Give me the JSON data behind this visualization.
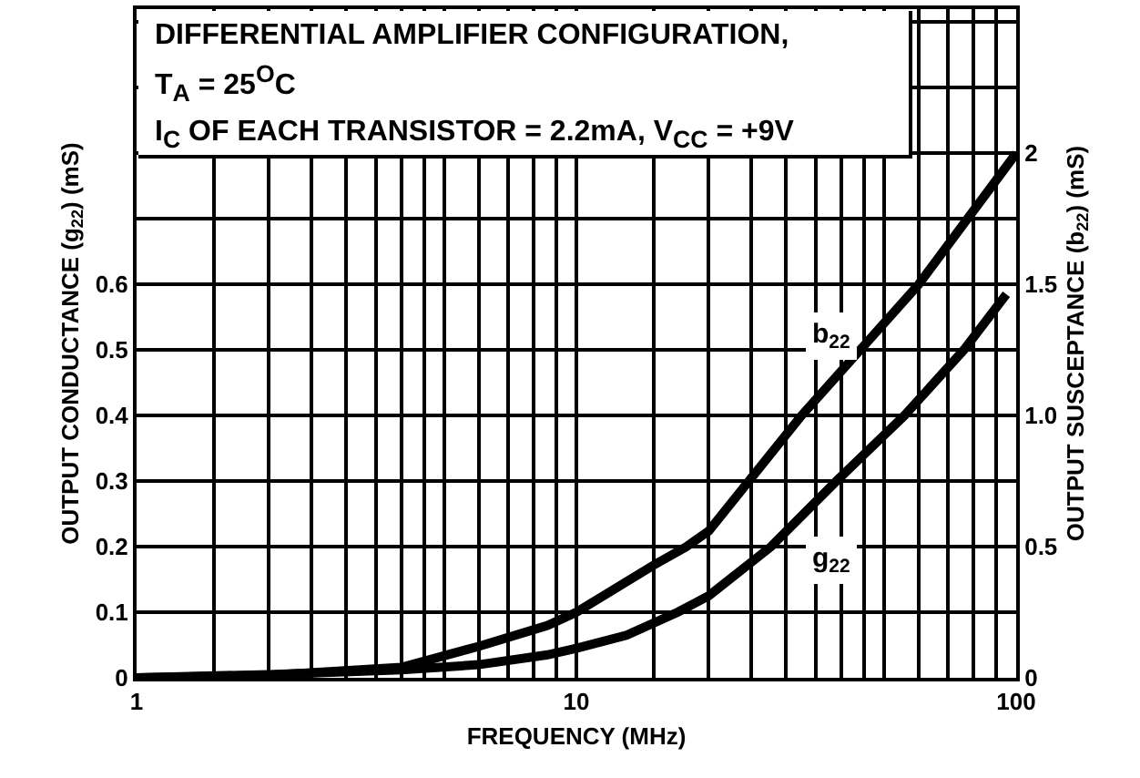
{
  "chart_data": {
    "type": "line",
    "title": "DIFFERENTIAL AMPLIFIER CONFIGURATION,\nT$_{A}$ = 25$^{O}$C\nI$_{C}$ OF EACH TRANSISTOR = 2.2mA, V$_{CC}$ = +9V",
    "xlabel": "FREQUENCY (MHz)",
    "ylabel": "OUTPUT CONDUCTANCE (g$_{22}$) (mS)",
    "y2label": "OUTPUT SUSCEPTANCE (b$_{22}$) (mS)",
    "log": "x",
    "grid": true,
    "marker": "none",
    "line_style": "solid",
    "xlim": [
      1,
      100
    ],
    "xticks": [
      1,
      {
        "value": 1.5,
        "label": null
      },
      {
        "value": 2,
        "label": null
      },
      {
        "value": 2.5,
        "label": null
      },
      {
        "value": 3,
        "label": null
      },
      {
        "value": 3.5,
        "label": null
      },
      {
        "value": 4,
        "label": null
      },
      {
        "value": 4.5,
        "label": null
      },
      {
        "value": 5,
        "label": null
      },
      {
        "value": 6,
        "label": null
      },
      {
        "value": 7,
        "label": null
      },
      {
        "value": 8,
        "label": null
      },
      {
        "value": 9,
        "label": null
      },
      10,
      {
        "value": 15,
        "label": null
      },
      {
        "value": 20,
        "label": null
      },
      {
        "value": 25,
        "label": null
      },
      {
        "value": 30,
        "label": null
      },
      {
        "value": 35,
        "label": null
      },
      {
        "value": 40,
        "label": null
      },
      {
        "value": 45,
        "label": null
      },
      {
        "value": 50,
        "label": null
      },
      {
        "value": 60,
        "label": null
      },
      {
        "value": 70,
        "label": null
      },
      {
        "value": 80,
        "label": null
      },
      {
        "value": 90,
        "label": null
      },
      100
    ],
    "ylim": [
      0,
      1.02
    ],
    "yticks": [
      0,
      0.1,
      0.2,
      0.3,
      0.4,
      0.5,
      0.6,
      {
        "value": 0.7,
        "label": null
      },
      {
        "value": 0.8,
        "label": null
      },
      {
        "value": 0.9,
        "label": null
      },
      {
        "value": 1.0,
        "label": null
      }
    ],
    "y2lim": [
      0,
      2.55
    ],
    "y2ticks": [
      0,
      0.5,
      {
        "value": 1,
        "label": "1.0"
      },
      1.5,
      2
    ],
    "series": [
      {
        "color": "#000000",
        "x": [
          1,
          2,
          4,
          6,
          8.6,
          10,
          13,
          17,
          20,
          27.7,
          39,
          55.7,
          76,
          95
        ],
        "values": [
          0,
          0.005,
          0.012,
          0.02,
          0.035,
          0.045,
          0.065,
          0.1,
          0.125,
          0.2,
          0.3,
          0.4,
          0.5,
          0.585
        ]
      },
      {
        "color": "#000000",
        "axis": "y2",
        "x": [
          1,
          2,
          4,
          6,
          8.6,
          10,
          15,
          17.8,
          20,
          32.5,
          60,
          100
        ],
        "values": [
          0,
          0.01,
          0.04,
          0.12,
          0.2,
          0.25,
          0.43,
          0.5,
          0.56,
          1.0,
          1.5,
          2.0
        ]
      }
    ],
    "annotations": [
      {
        "text": "b$_{22}$",
        "x": 38,
        "y": 0.52
      },
      {
        "text": "g$_{22}$",
        "x": 38,
        "y": 0.18
      }
    ]
  }
}
